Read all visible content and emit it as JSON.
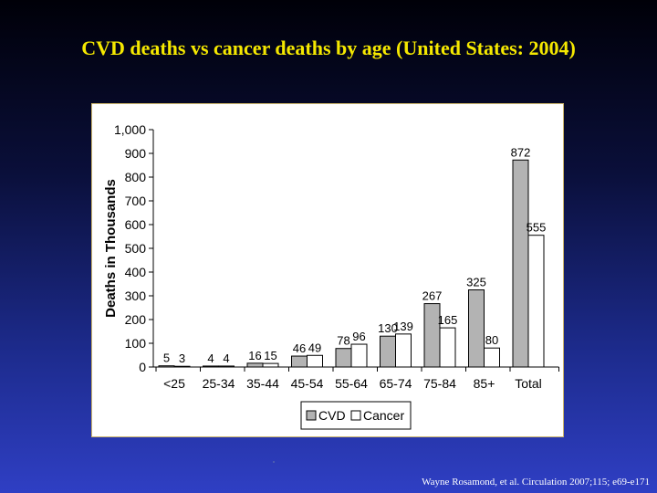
{
  "title": "CVD deaths vs cancer deaths by age (United States: 2004)",
  "citation": "Wayne Rosamond, et al. Circulation  2007;115; e69-e171",
  "colors": {
    "title": "#f5e800",
    "cvd": "#b3b3b3",
    "cancer": "#ffffff",
    "panel_border": "#c9b26a"
  },
  "chart_data": {
    "type": "bar",
    "categories": [
      "<25",
      "25-34",
      "35-44",
      "45-54",
      "55-64",
      "65-74",
      "75-84",
      "85+",
      "Total"
    ],
    "series": [
      {
        "name": "CVD",
        "values": [
          5,
          4,
          16,
          46,
          78,
          130,
          267,
          325,
          872
        ],
        "color": "#b3b3b3"
      },
      {
        "name": "Cancer",
        "values": [
          3,
          4,
          15,
          49,
          96,
          139,
          165,
          80,
          555
        ],
        "color": "#ffffff"
      }
    ],
    "xlabel": "",
    "ylabel": "Deaths in Thousands",
    "ylim": [
      0,
      1000
    ],
    "yticks": [
      "0",
      "100",
      "200",
      "300",
      "400",
      "500",
      "600",
      "700",
      "800",
      "900",
      "1,000"
    ],
    "grid": false,
    "legend": "bottom-center"
  }
}
